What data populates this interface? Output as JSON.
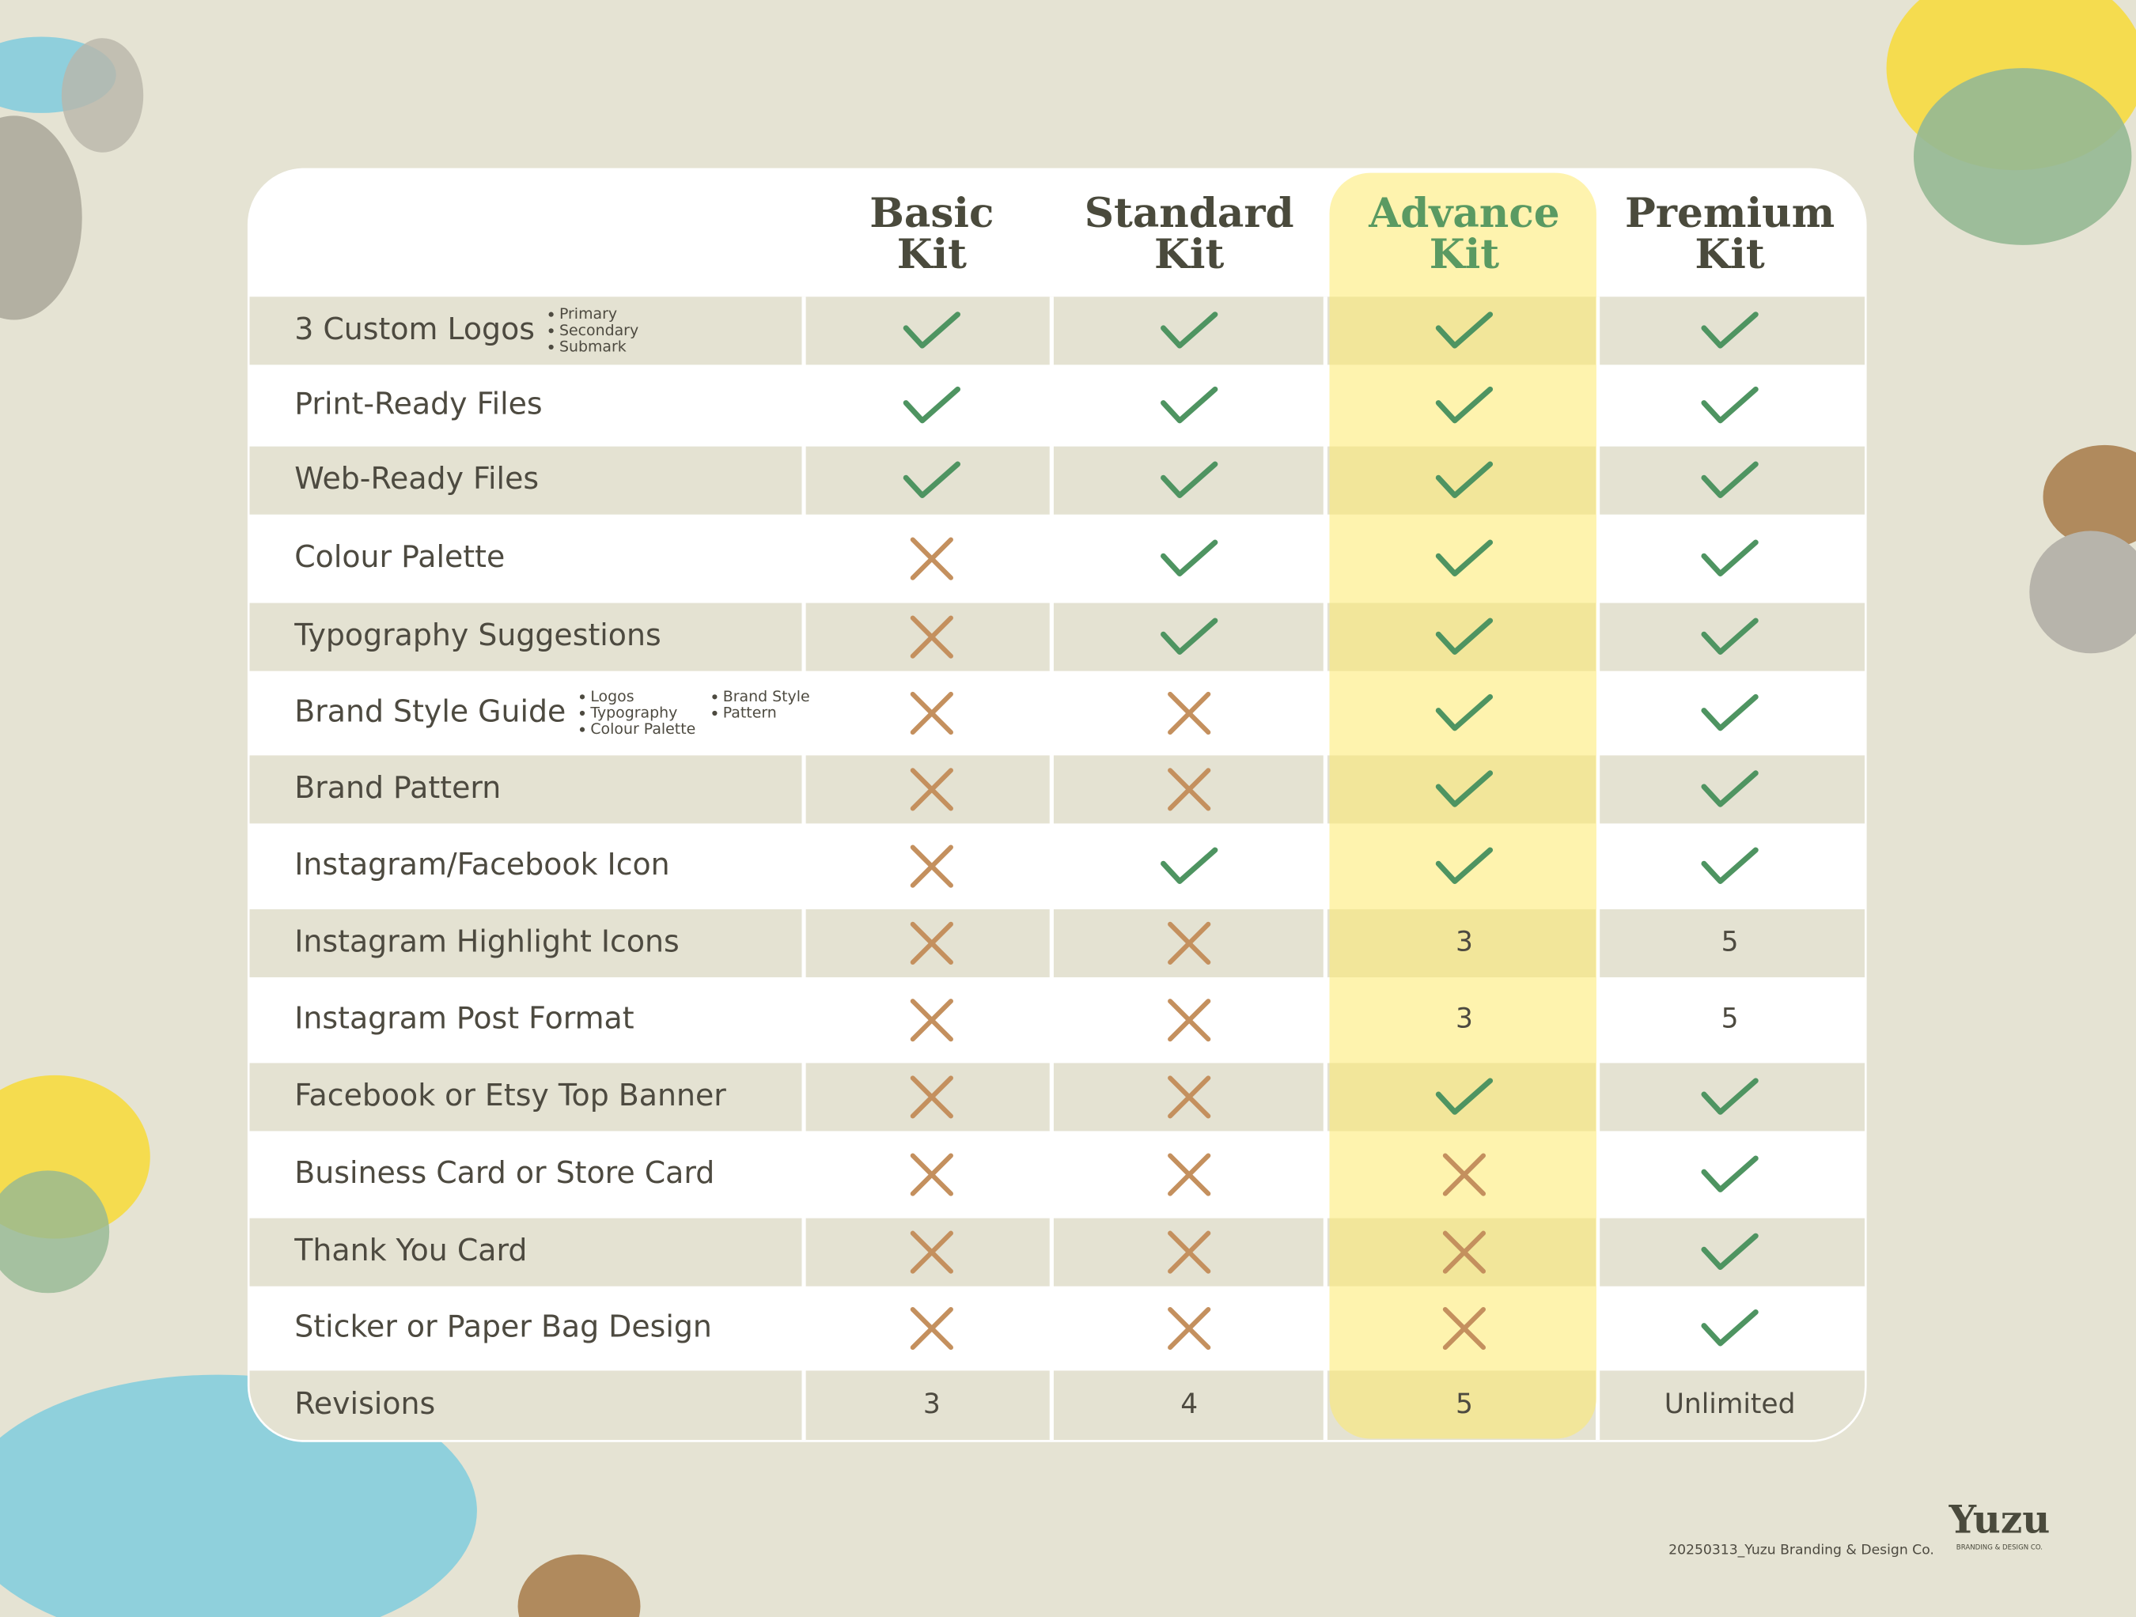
{
  "header": {
    "columns": [
      [
        "Basic",
        "Kit"
      ],
      [
        "Standard",
        "Kit"
      ],
      [
        "Advance",
        "Kit"
      ],
      [
        "Premium",
        "Kit"
      ]
    ]
  },
  "rows": [
    {
      "feature": "3 Custom Logos",
      "notes": [
        [
          "Primary",
          "Secondary",
          "Submark"
        ]
      ],
      "cells": [
        true,
        true,
        true,
        true
      ]
    },
    {
      "feature": "Print-Ready Files",
      "cells": [
        true,
        true,
        true,
        true
      ]
    },
    {
      "feature": "Web-Ready Files",
      "cells": [
        true,
        true,
        true,
        true
      ]
    },
    {
      "feature": "Colour Palette",
      "cells": [
        false,
        true,
        true,
        true
      ]
    },
    {
      "feature": "Typography Suggestions",
      "cells": [
        false,
        true,
        true,
        true
      ]
    },
    {
      "feature": "Brand Style Guide",
      "notes": [
        [
          "Logos",
          "Typography",
          "Colour Palette"
        ],
        [
          "Brand Style",
          "Pattern"
        ]
      ],
      "cells": [
        false,
        false,
        true,
        true
      ]
    },
    {
      "feature": "Brand Pattern",
      "cells": [
        false,
        false,
        true,
        true
      ]
    },
    {
      "feature": "Instagram/Facebook Icon",
      "cells": [
        false,
        true,
        true,
        true
      ]
    },
    {
      "feature": "Instagram Highlight Icons",
      "cells": [
        false,
        false,
        3,
        5
      ]
    },
    {
      "feature": "Instagram Post Format",
      "cells": [
        false,
        false,
        3,
        5
      ]
    },
    {
      "feature": "Facebook or Etsy Top Banner",
      "cells": [
        false,
        false,
        true,
        true
      ]
    },
    {
      "feature": "Business Card or Store Card",
      "cells": [
        false,
        false,
        false,
        true
      ]
    },
    {
      "feature": "Thank You Card",
      "cells": [
        false,
        false,
        false,
        true
      ]
    },
    {
      "feature": "Sticker or Paper Bag Design",
      "cells": [
        false,
        false,
        false,
        true
      ]
    },
    {
      "feature": "Revisions",
      "cells": [
        3,
        4,
        5,
        "Unlimited"
      ]
    }
  ],
  "footer": {
    "caption": "20250313_Yuzu Branding & Design Co.",
    "logo": "Yuzu",
    "logo_tagline": "BRANDING & DESIGN CO."
  }
}
